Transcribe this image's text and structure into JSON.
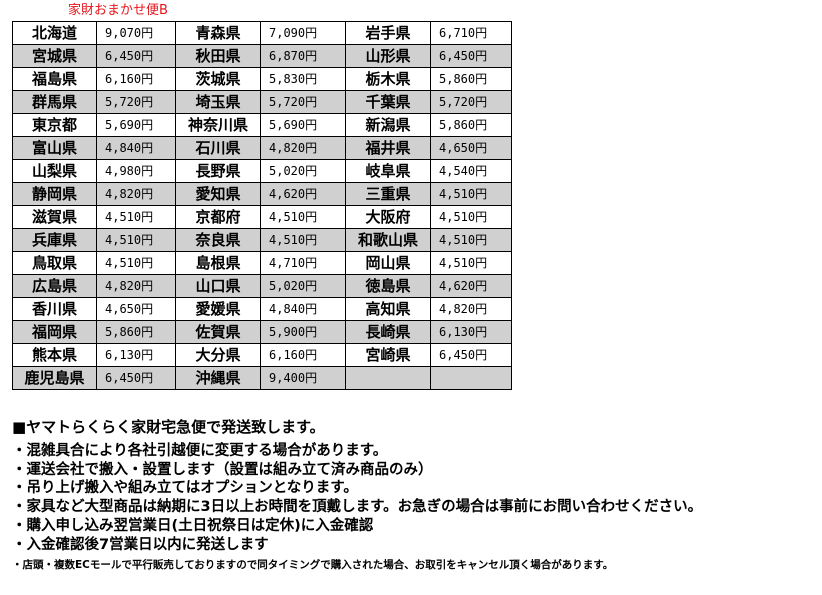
{
  "caption": "家財おまかせ便B",
  "rate_table": [
    [
      [
        "北海道",
        "9,070円"
      ],
      [
        "青森県",
        "7,090円"
      ],
      [
        "岩手県",
        "6,710円"
      ]
    ],
    [
      [
        "宮城県",
        "6,450円"
      ],
      [
        "秋田県",
        "6,870円"
      ],
      [
        "山形県",
        "6,450円"
      ]
    ],
    [
      [
        "福島県",
        "6,160円"
      ],
      [
        "茨城県",
        "5,830円"
      ],
      [
        "栃木県",
        "5,860円"
      ]
    ],
    [
      [
        "群馬県",
        "5,720円"
      ],
      [
        "埼玉県",
        "5,720円"
      ],
      [
        "千葉県",
        "5,720円"
      ]
    ],
    [
      [
        "東京都",
        "5,690円"
      ],
      [
        "神奈川県",
        "5,690円"
      ],
      [
        "新潟県",
        "5,860円"
      ]
    ],
    [
      [
        "富山県",
        "4,840円"
      ],
      [
        "石川県",
        "4,820円"
      ],
      [
        "福井県",
        "4,650円"
      ]
    ],
    [
      [
        "山梨県",
        "4,980円"
      ],
      [
        "長野県",
        "5,020円"
      ],
      [
        "岐阜県",
        "4,540円"
      ]
    ],
    [
      [
        "静岡県",
        "4,820円"
      ],
      [
        "愛知県",
        "4,620円"
      ],
      [
        "三重県",
        "4,510円"
      ]
    ],
    [
      [
        "滋賀県",
        "4,510円"
      ],
      [
        "京都府",
        "4,510円"
      ],
      [
        "大阪府",
        "4,510円"
      ]
    ],
    [
      [
        "兵庫県",
        "4,510円"
      ],
      [
        "奈良県",
        "4,510円"
      ],
      [
        "和歌山県",
        "4,510円"
      ]
    ],
    [
      [
        "鳥取県",
        "4,510円"
      ],
      [
        "島根県",
        "4,710円"
      ],
      [
        "岡山県",
        "4,510円"
      ]
    ],
    [
      [
        "広島県",
        "4,820円"
      ],
      [
        "山口県",
        "5,020円"
      ],
      [
        "徳島県",
        "4,620円"
      ]
    ],
    [
      [
        "香川県",
        "4,650円"
      ],
      [
        "愛媛県",
        "4,840円"
      ],
      [
        "高知県",
        "4,820円"
      ]
    ],
    [
      [
        "福岡県",
        "5,860円"
      ],
      [
        "佐賀県",
        "5,900円"
      ],
      [
        "長崎県",
        "6,130円"
      ]
    ],
    [
      [
        "熊本県",
        "6,130円"
      ],
      [
        "大分県",
        "6,160円"
      ],
      [
        "宮崎県",
        "6,450円"
      ]
    ],
    [
      [
        "鹿児島県",
        "6,450円"
      ],
      [
        "沖縄県",
        "9,400円"
      ],
      [
        "",
        ""
      ]
    ]
  ],
  "heading": "■ヤマトらくらく家財宅急便で発送致します。",
  "bullets": [
    "・混雑具合により各社引越便に変更する場合があります。",
    "・運送会社で搬入・設置します（設置は組み立て済み商品のみ）",
    "・吊り上げ搬入や組み立てはオプションとなります。",
    "・家具など大型商品は納期に3日以上お時間を頂戴します。お急ぎの場合は事前にお問い合わせください。",
    "・購入申し込み翌営業日(土日祝祭日は定休)に入金確認",
    "・入金確認後7営業日以内に発送します"
  ],
  "note": "・店頭・複数ECモールで平行販売しておりますので同タイミングで購入された場合、お取引をキャンセル頂く場合があります。",
  "colors": {
    "caption": "#e8141b",
    "alt_row": "#d0d0d0"
  }
}
